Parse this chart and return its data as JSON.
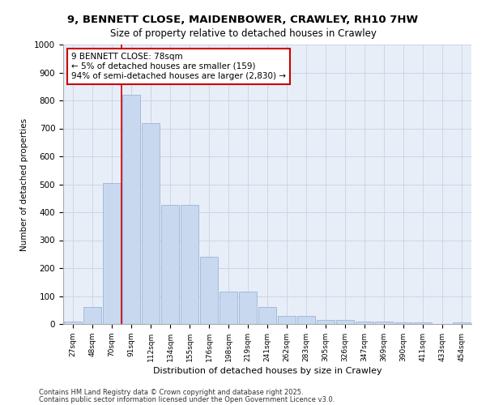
{
  "title1": "9, BENNETT CLOSE, MAIDENBOWER, CRAWLEY, RH10 7HW",
  "title2": "Size of property relative to detached houses in Crawley",
  "xlabel": "Distribution of detached houses by size in Crawley",
  "ylabel": "Number of detached properties",
  "categories": [
    "27sqm",
    "48sqm",
    "70sqm",
    "91sqm",
    "112sqm",
    "134sqm",
    "155sqm",
    "176sqm",
    "198sqm",
    "219sqm",
    "241sqm",
    "262sqm",
    "283sqm",
    "305sqm",
    "326sqm",
    "347sqm",
    "369sqm",
    "390sqm",
    "411sqm",
    "433sqm",
    "454sqm"
  ],
  "values": [
    10,
    60,
    505,
    820,
    720,
    425,
    425,
    240,
    115,
    115,
    60,
    30,
    30,
    15,
    15,
    10,
    10,
    5,
    5,
    0,
    5
  ],
  "bar_color": "#c8d8ef",
  "bar_edge_color": "#9ab5d8",
  "annotation_text": "9 BENNETT CLOSE: 78sqm\n← 5% of detached houses are smaller (159)\n94% of semi-detached houses are larger (2,830) →",
  "annotation_box_color": "#ffffff",
  "annotation_box_edge": "#cc0000",
  "grid_color": "#ccd6e8",
  "background_color": "#e8eef8",
  "footer1": "Contains HM Land Registry data © Crown copyright and database right 2025.",
  "footer2": "Contains public sector information licensed under the Open Government Licence v3.0.",
  "ylim": [
    0,
    1000
  ],
  "yticks": [
    0,
    100,
    200,
    300,
    400,
    500,
    600,
    700,
    800,
    900,
    1000
  ]
}
